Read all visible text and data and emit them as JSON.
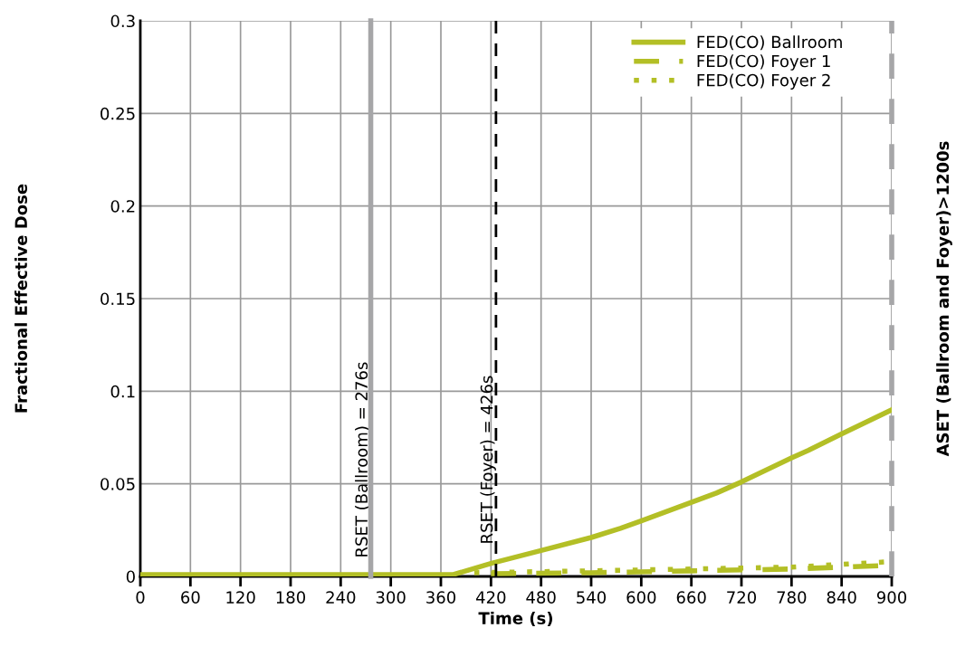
{
  "chart_data": {
    "type": "line",
    "xlabel": "Time (s)",
    "ylabel": "Fractional Effective Dose",
    "xlim": [
      0,
      900
    ],
    "ylim": [
      0,
      0.3
    ],
    "xticks": [
      0,
      60,
      120,
      180,
      240,
      300,
      360,
      420,
      480,
      540,
      600,
      660,
      720,
      780,
      840,
      900
    ],
    "yticks": [
      0,
      0.05,
      0.1,
      0.15,
      0.2,
      0.25,
      0.3
    ],
    "grid": true,
    "legend": "top right",
    "marker": "none",
    "series": [
      {
        "name": "FED(CO) Ballroom",
        "color": "#b3bf26",
        "line_style": "solid",
        "x": [
          0,
          375,
          420,
          480,
          540,
          575,
          600,
          660,
          690,
          720,
          780,
          800,
          840,
          900
        ],
        "values": [
          0.001,
          0.001,
          0.007,
          0.014,
          0.021,
          0.026,
          0.03,
          0.04,
          0.045,
          0.051,
          0.064,
          0.068,
          0.077,
          0.09
        ]
      },
      {
        "name": "FED(CO) Foyer 1",
        "color": "#b3bf26",
        "line_style": "dashed",
        "x": [
          420,
          540,
          660,
          780,
          900
        ],
        "values": [
          0.0015,
          0.002,
          0.003,
          0.004,
          0.006
        ]
      },
      {
        "name": "FED(CO) Foyer 2",
        "color": "#b3bf26",
        "line_style": "dotted",
        "x": [
          400,
          540,
          660,
          780,
          900
        ],
        "values": [
          0.002,
          0.003,
          0.004,
          0.005,
          0.008
        ]
      }
    ],
    "ref_lines": [
      {
        "axis": "x",
        "value": 276,
        "label": "RSET (Ballroom) = 276s",
        "color": "#a6a6a8",
        "line_style": "solid"
      },
      {
        "axis": "x",
        "value": 426,
        "label": "RSET (Foyer) = 426s",
        "color": "#000000",
        "line_style": "dashed"
      },
      {
        "axis": "x",
        "value": 900,
        "label": "ASET (Ballroom and Foyer)>1200s",
        "color": "#a6a6a8",
        "line_style": "dashed"
      }
    ]
  }
}
